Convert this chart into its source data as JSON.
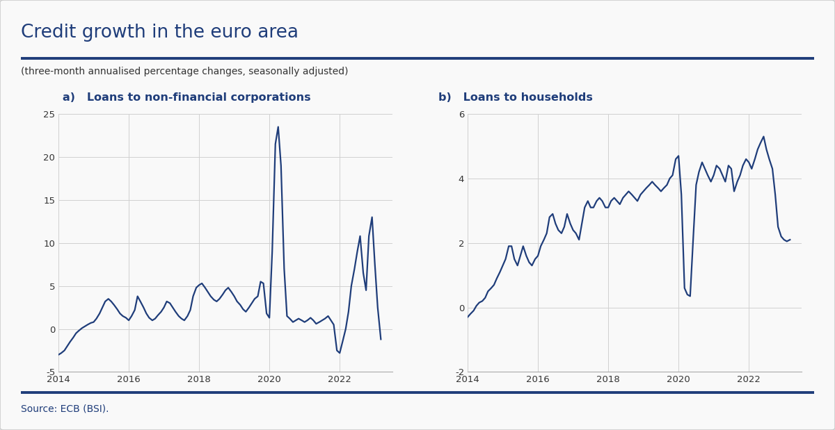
{
  "title": "Credit growth in the euro area",
  "subtitle": "(three-month annualised percentage changes, seasonally adjusted)",
  "panel_a_label": "a)   Loans to non-financial corporations",
  "panel_b_label": "b)   Loans to households",
  "line_color": "#1f3d7a",
  "background_color": "#f9f9f9",
  "grid_color": "#d0d0d0",
  "title_color": "#1f3d7a",
  "border_color": "#cccccc",
  "source_text": "Source: ECB (BSI).",
  "panel_a_ylim": [
    -5,
    25
  ],
  "panel_a_yticks": [
    -5,
    0,
    5,
    10,
    15,
    20,
    25
  ],
  "panel_b_ylim": [
    -2,
    6
  ],
  "panel_b_yticks": [
    -2,
    0,
    2,
    4,
    6
  ],
  "xlim_start": 2014.0,
  "xlim_end": 2023.5,
  "xticks": [
    2014,
    2016,
    2018,
    2020,
    2022
  ],
  "panel_a_data": {
    "t": [
      2014.0,
      2014.08,
      2014.17,
      2014.25,
      2014.33,
      2014.42,
      2014.5,
      2014.58,
      2014.67,
      2014.75,
      2014.83,
      2014.92,
      2015.0,
      2015.08,
      2015.17,
      2015.25,
      2015.33,
      2015.42,
      2015.5,
      2015.58,
      2015.67,
      2015.75,
      2015.83,
      2015.92,
      2016.0,
      2016.08,
      2016.17,
      2016.25,
      2016.33,
      2016.42,
      2016.5,
      2016.58,
      2016.67,
      2016.75,
      2016.83,
      2016.92,
      2017.0,
      2017.08,
      2017.17,
      2017.25,
      2017.33,
      2017.42,
      2017.5,
      2017.58,
      2017.67,
      2017.75,
      2017.83,
      2017.92,
      2018.0,
      2018.08,
      2018.17,
      2018.25,
      2018.33,
      2018.42,
      2018.5,
      2018.58,
      2018.67,
      2018.75,
      2018.83,
      2018.92,
      2019.0,
      2019.08,
      2019.17,
      2019.25,
      2019.33,
      2019.42,
      2019.5,
      2019.58,
      2019.67,
      2019.75,
      2019.83,
      2019.92,
      2020.0,
      2020.08,
      2020.17,
      2020.25,
      2020.33,
      2020.42,
      2020.5,
      2020.58,
      2020.67,
      2020.75,
      2020.83,
      2020.92,
      2021.0,
      2021.08,
      2021.17,
      2021.25,
      2021.33,
      2021.42,
      2021.5,
      2021.58,
      2021.67,
      2021.75,
      2021.83,
      2021.92,
      2022.0,
      2022.08,
      2022.17,
      2022.25,
      2022.33,
      2022.42,
      2022.5,
      2022.58,
      2022.67,
      2022.75,
      2022.83,
      2022.92,
      2023.0,
      2023.08,
      2023.17
    ],
    "y": [
      -3.0,
      -2.8,
      -2.5,
      -2.0,
      -1.5,
      -1.0,
      -0.5,
      -0.2,
      0.1,
      0.3,
      0.5,
      0.7,
      0.8,
      1.2,
      1.8,
      2.5,
      3.2,
      3.5,
      3.2,
      2.8,
      2.3,
      1.8,
      1.5,
      1.3,
      1.0,
      1.5,
      2.2,
      3.8,
      3.2,
      2.5,
      1.8,
      1.3,
      1.0,
      1.2,
      1.6,
      2.0,
      2.5,
      3.2,
      3.0,
      2.5,
      2.0,
      1.5,
      1.2,
      1.0,
      1.5,
      2.2,
      3.8,
      4.8,
      5.1,
      5.3,
      4.8,
      4.3,
      3.8,
      3.4,
      3.2,
      3.5,
      4.0,
      4.5,
      4.8,
      4.3,
      3.8,
      3.2,
      2.8,
      2.3,
      2.0,
      2.5,
      3.0,
      3.5,
      3.8,
      5.5,
      5.3,
      1.8,
      1.3,
      9.0,
      21.5,
      23.5,
      19.0,
      7.0,
      1.5,
      1.2,
      0.8,
      1.0,
      1.2,
      1.0,
      0.8,
      1.0,
      1.3,
      1.0,
      0.6,
      0.8,
      1.0,
      1.2,
      1.5,
      1.0,
      0.5,
      -2.5,
      -2.8,
      -1.5,
      0.0,
      2.0,
      5.0,
      7.0,
      9.0,
      10.8,
      6.5,
      4.5,
      10.8,
      13.0,
      7.5,
      2.5,
      -1.2
    ]
  },
  "panel_b_data": {
    "t": [
      2014.0,
      2014.08,
      2014.17,
      2014.25,
      2014.33,
      2014.42,
      2014.5,
      2014.58,
      2014.67,
      2014.75,
      2014.83,
      2014.92,
      2015.0,
      2015.08,
      2015.17,
      2015.25,
      2015.33,
      2015.42,
      2015.5,
      2015.58,
      2015.67,
      2015.75,
      2015.83,
      2015.92,
      2016.0,
      2016.08,
      2016.17,
      2016.25,
      2016.33,
      2016.42,
      2016.5,
      2016.58,
      2016.67,
      2016.75,
      2016.83,
      2016.92,
      2017.0,
      2017.08,
      2017.17,
      2017.25,
      2017.33,
      2017.42,
      2017.5,
      2017.58,
      2017.67,
      2017.75,
      2017.83,
      2017.92,
      2018.0,
      2018.08,
      2018.17,
      2018.25,
      2018.33,
      2018.42,
      2018.5,
      2018.58,
      2018.67,
      2018.75,
      2018.83,
      2018.92,
      2019.0,
      2019.08,
      2019.17,
      2019.25,
      2019.33,
      2019.42,
      2019.5,
      2019.58,
      2019.67,
      2019.75,
      2019.83,
      2019.92,
      2020.0,
      2020.08,
      2020.17,
      2020.25,
      2020.33,
      2020.42,
      2020.5,
      2020.58,
      2020.67,
      2020.75,
      2020.83,
      2020.92,
      2021.0,
      2021.08,
      2021.17,
      2021.25,
      2021.33,
      2021.42,
      2021.5,
      2021.58,
      2021.67,
      2021.75,
      2021.83,
      2021.92,
      2022.0,
      2022.08,
      2022.17,
      2022.25,
      2022.33,
      2022.42,
      2022.5,
      2022.58,
      2022.67,
      2022.75,
      2022.83,
      2022.92,
      2023.0,
      2023.08,
      2023.17
    ],
    "y": [
      -0.3,
      -0.2,
      -0.1,
      0.05,
      0.15,
      0.2,
      0.3,
      0.5,
      0.6,
      0.7,
      0.9,
      1.1,
      1.3,
      1.5,
      1.9,
      1.9,
      1.5,
      1.3,
      1.6,
      1.9,
      1.6,
      1.4,
      1.3,
      1.5,
      1.6,
      1.9,
      2.1,
      2.3,
      2.8,
      2.9,
      2.6,
      2.4,
      2.3,
      2.5,
      2.9,
      2.6,
      2.4,
      2.3,
      2.1,
      2.6,
      3.1,
      3.3,
      3.1,
      3.1,
      3.3,
      3.4,
      3.3,
      3.1,
      3.1,
      3.3,
      3.4,
      3.3,
      3.2,
      3.4,
      3.5,
      3.6,
      3.5,
      3.4,
      3.3,
      3.5,
      3.6,
      3.7,
      3.8,
      3.9,
      3.8,
      3.7,
      3.6,
      3.7,
      3.8,
      4.0,
      4.1,
      4.6,
      4.7,
      3.5,
      0.6,
      0.4,
      0.35,
      2.2,
      3.8,
      4.2,
      4.5,
      4.3,
      4.1,
      3.9,
      4.1,
      4.4,
      4.3,
      4.1,
      3.9,
      4.4,
      4.3,
      3.6,
      3.9,
      4.1,
      4.4,
      4.6,
      4.5,
      4.3,
      4.6,
      4.9,
      5.1,
      5.3,
      4.9,
      4.6,
      4.3,
      3.5,
      2.5,
      2.2,
      2.1,
      2.05,
      2.1
    ]
  }
}
